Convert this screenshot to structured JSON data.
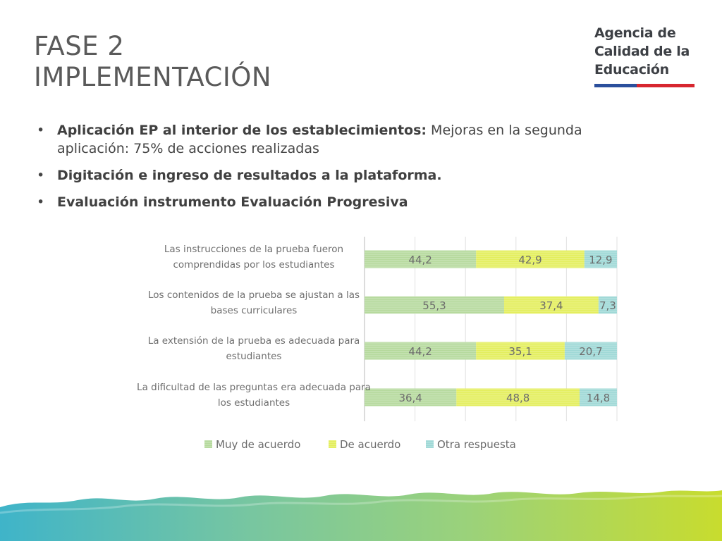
{
  "header": {
    "title_line1": "FASE 2",
    "title_line2": "IMPLEMENTACIÓN"
  },
  "logo": {
    "line1": "Agencia de",
    "line2": "Calidad de la",
    "line3": "Educación",
    "colors": [
      "#2b4f9c",
      "#d7262f"
    ]
  },
  "bullets": [
    {
      "bold": "Aplicación EP al interior de los establecimientos:",
      "text": " Mejoras en la segunda aplicación: 75% de acciones realizadas"
    },
    {
      "bold": "Digitación e ingreso de resultados a la plataforma.",
      "text": ""
    },
    {
      "bold": "Evaluación instrumento Evaluación Progresiva",
      "text": ""
    }
  ],
  "bullet_symbol": "•",
  "chart_data": {
    "type": "bar",
    "orientation": "horizontal",
    "stacked": true,
    "categories": [
      [
        "Las instrucciones de la prueba fueron",
        "comprendidas por los estudiantes"
      ],
      [
        "Los contenidos de la prueba se ajustan a las",
        "bases curriculares"
      ],
      [
        "La extensión de la prueba es adecuada para",
        "estudiantes"
      ],
      [
        "La dificultad de las preguntas era adecuada para",
        "los estudiantes"
      ]
    ],
    "series": [
      {
        "name": "Muy de acuerdo",
        "color": "#b5d99c",
        "values": [
          44.2,
          55.3,
          44.2,
          36.4
        ],
        "labels": [
          "44,2",
          "55,3",
          "44,2",
          "36,4"
        ]
      },
      {
        "name": "De acuerdo",
        "color": "#e3ee5c",
        "values": [
          42.9,
          37.4,
          35.1,
          48.8
        ],
        "labels": [
          "42,9",
          "37,4",
          "35,1",
          "48,8"
        ]
      },
      {
        "name": "Otra respuesta",
        "color": "#9ed8d6",
        "values": [
          12.9,
          7.3,
          20.7,
          14.8
        ],
        "labels": [
          "12,9",
          "7,3",
          "20,7",
          "14,8"
        ]
      }
    ],
    "xlim": [
      0,
      100
    ],
    "grid": true,
    "legend": "bottom"
  }
}
